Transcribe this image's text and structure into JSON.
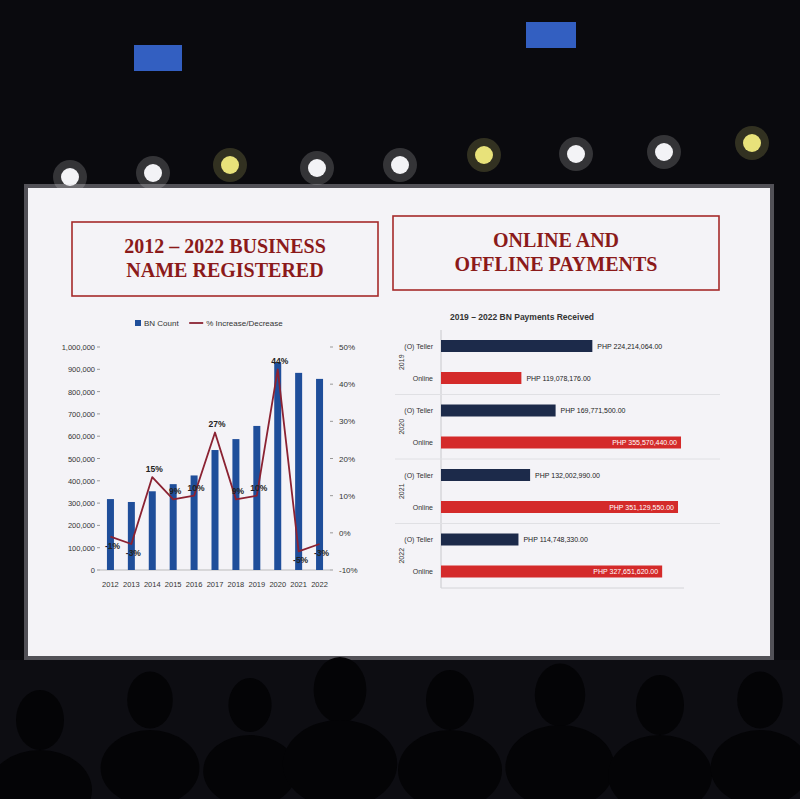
{
  "chart_data": [
    {
      "type": "bar",
      "title": "2012 – 2022 BUSINESS NAME REGISTERED",
      "categories": [
        "2012",
        "2013",
        "2014",
        "2015",
        "2016",
        "2017",
        "2018",
        "2019",
        "2020",
        "2021",
        "2022"
      ],
      "series": [
        {
          "name": "BN Count",
          "type": "bar",
          "color": "#1f4e9a",
          "values": [
            318000,
            305000,
            353000,
            385000,
            424000,
            538000,
            587000,
            646000,
            930000,
            884000,
            857000
          ]
        },
        {
          "name": "% Increase/Decrease",
          "type": "line",
          "color": "#8b2232",
          "axis": "y2",
          "data_labels": true,
          "values": [
            -1,
            -3,
            15,
            9,
            10,
            27,
            9,
            10,
            44,
            -5,
            -3
          ],
          "value_labels": [
            "-1%",
            "-3%",
            "15%",
            "9%",
            "10%",
            "27%",
            "9%",
            "10%",
            "44%",
            "-5%",
            "-3%"
          ]
        }
      ],
      "ylim": [
        0,
        1000000
      ],
      "yticks": [
        0,
        {
          "value": 100000,
          "label": "100,000"
        },
        {
          "value": 200000,
          "label": "200,000"
        },
        {
          "value": 300000,
          "label": "300,000"
        },
        {
          "value": 400000,
          "label": "400,000"
        },
        {
          "value": 500000,
          "label": "500,000"
        },
        {
          "value": 600000,
          "label": "600,000"
        },
        {
          "value": 700000,
          "label": "700,000"
        },
        {
          "value": 800000,
          "label": "800,000"
        },
        {
          "value": 900000,
          "label": "900,000"
        },
        {
          "value": 1000000,
          "label": "1,000,000"
        }
      ],
      "y2lim": [
        -10,
        50
      ],
      "y2ticks": [
        {
          "value": -10,
          "label": "-10%"
        },
        {
          "value": 0,
          "label": "0%"
        },
        {
          "value": 10,
          "label": "10%"
        },
        {
          "value": 20,
          "label": "20%"
        },
        {
          "value": 30,
          "label": "30%"
        },
        {
          "value": 40,
          "label": "40%"
        },
        {
          "value": 50,
          "label": "50%"
        }
      ],
      "legend": "top",
      "grid": false
    },
    {
      "type": "bar",
      "orientation": "horizontal",
      "title": "ONLINE AND OFFLINE PAYMENTS",
      "subtitle": "2019 – 2022 BN Payments Received",
      "categories": [
        "2019",
        "2020",
        "2021",
        "2022"
      ],
      "series": [
        {
          "name": "(O) Teller",
          "color": "#1c2a4a",
          "values": [
            224214064.0,
            169771500.0,
            132002990.0,
            114748330.0
          ],
          "value_labels": [
            "PHP 224,214,064.00",
            "PHP 169,771,500.00",
            "PHP 132,002,990.00",
            "PHP 114,748,330.00"
          ]
        },
        {
          "name": "Online",
          "color": "#d42a2a",
          "values": [
            119078176.0,
            355570440.0,
            351129550.0,
            327651620.0
          ],
          "value_labels": [
            "PHP 119,078,176.00",
            "PHP 355,570,440.00",
            "PHP 351,129,550.00",
            "PHP 327,651,620.00"
          ]
        }
      ],
      "xlim": [
        0,
        360000000
      ],
      "data_labels": true,
      "tick_labels": false,
      "grid": false
    }
  ]
}
